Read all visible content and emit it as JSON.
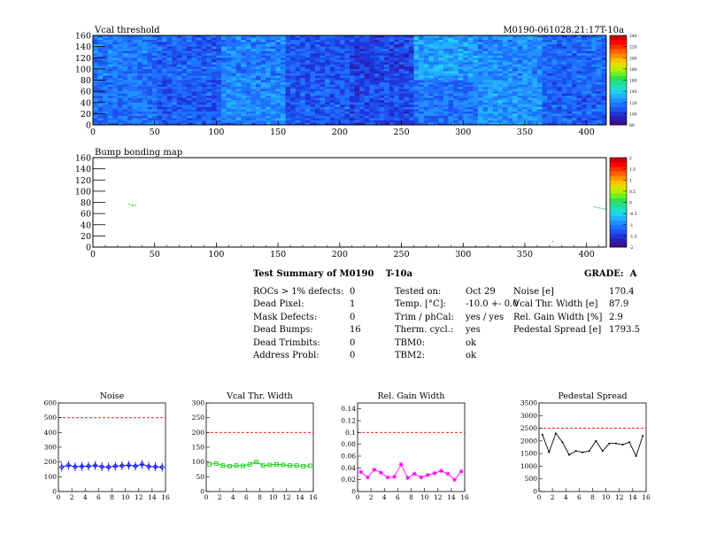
{
  "colors": {
    "map_low": "#2222cc",
    "map_mid": "#3aa0ff",
    "red_line": "#ff0000",
    "noise_series": "#0000ff",
    "vcal_series": "#00cc00",
    "gain_series": "#ff00ff",
    "pedestal_series": "#000000"
  },
  "header": {
    "vcal_title": "Vcal threshold",
    "module_id": "M0190-061028.21:17T-10a",
    "bump_title": "Bump bonding map"
  },
  "summary": {
    "title": "Test Summary of M0190",
    "subtitle": "T-10a",
    "grade_label": "GRADE:",
    "grade_value": "A",
    "col1": [
      {
        "label": "ROCs > 1% defects:",
        "value": "0"
      },
      {
        "label": "Dead Pixel:",
        "value": "1"
      },
      {
        "label": "Mask Defects:",
        "value": "0"
      },
      {
        "label": "Dead Bumps:",
        "value": "16"
      },
      {
        "label": "Dead Trimbits:",
        "value": "0"
      },
      {
        "label": "Address Probl:",
        "value": "0"
      }
    ],
    "col2": [
      {
        "label": "Tested on:",
        "value": "Oct 29"
      },
      {
        "label": "Temp. [°C]:",
        "value": "-10.0 +- 0.0"
      },
      {
        "label": "Trim / phCal:",
        "value": "yes / yes"
      },
      {
        "label": "Therm. cycl.:",
        "value": "yes"
      },
      {
        "label": "TBM0:",
        "value": "ok"
      },
      {
        "label": "TBM2:",
        "value": "ok"
      }
    ],
    "col3": [
      {
        "label": "Noise [e]",
        "value": "170.4"
      },
      {
        "label": "Vcal Thr. Width [e]",
        "value": "87.9"
      },
      {
        "label": "Rel. Gain Width [%]",
        "value": "2.9"
      },
      {
        "label": "Pedestal Spread [e]",
        "value": "1793.5"
      }
    ]
  },
  "chart_data": [
    {
      "type": "heatmap",
      "title": "Vcal threshold",
      "x_ticks": [
        "0",
        "50",
        "100",
        "150",
        "200",
        "250",
        "300",
        "350",
        "400"
      ],
      "y_ticks": [
        "0",
        "20",
        "40",
        "60",
        "80",
        "100",
        "120",
        "140",
        "160"
      ],
      "xlim": [
        0,
        416
      ],
      "ylim": [
        0,
        160
      ],
      "scale_ticks": [
        "240",
        "220",
        "200",
        "180",
        "160",
        "140",
        "120",
        "100",
        "80"
      ],
      "zlim": [
        80,
        240
      ],
      "roc_means_top": [
        118,
        112,
        120,
        108,
        104,
        128,
        122,
        114
      ],
      "roc_means_bottom": [
        116,
        110,
        122,
        110,
        106,
        116,
        126,
        112
      ]
    },
    {
      "type": "heatmap",
      "title": "Bump bonding map",
      "x_ticks": [
        "0",
        "50",
        "100",
        "150",
        "200",
        "250",
        "300",
        "350",
        "400"
      ],
      "y_ticks": [
        "0",
        "20",
        "40",
        "60",
        "80",
        "100",
        "120",
        "140",
        "160"
      ],
      "xlim": [
        0,
        416
      ],
      "ylim": [
        0,
        160
      ],
      "scale_ticks": [
        "2",
        "1.5",
        "1",
        "0.5",
        "0",
        "-0.5",
        "-1",
        "-1.5",
        "-2"
      ],
      "zlim": [
        -2,
        2
      ],
      "points": [
        [
          29,
          78
        ],
        [
          31,
          76
        ],
        [
          32,
          75
        ],
        [
          34,
          76
        ],
        [
          372,
          11
        ],
        [
          406,
          73
        ],
        [
          408,
          72
        ],
        [
          410,
          71
        ],
        [
          412,
          70
        ],
        [
          414,
          69
        ]
      ]
    },
    {
      "type": "line",
      "title": "Noise",
      "x_ticks": [
        "0",
        "2",
        "4",
        "6",
        "8",
        "10",
        "12",
        "14",
        "16"
      ],
      "y_ticks": [
        "0",
        "100",
        "200",
        "300",
        "400",
        "500",
        "600"
      ],
      "xlim": [
        0,
        16
      ],
      "ylim": [
        0,
        600
      ],
      "threshold": 500,
      "x": [
        0,
        1,
        2,
        3,
        4,
        5,
        6,
        7,
        8,
        9,
        10,
        11,
        12,
        13,
        14,
        15
      ],
      "values": [
        165,
        178,
        168,
        170,
        172,
        176,
        168,
        166,
        172,
        175,
        178,
        172,
        184,
        170,
        168,
        165
      ]
    },
    {
      "type": "line",
      "title": "Vcal Thr. Width",
      "x_ticks": [
        "0",
        "2",
        "4",
        "6",
        "8",
        "10",
        "12",
        "14",
        "16"
      ],
      "y_ticks": [
        "0",
        "50",
        "100",
        "150",
        "200",
        "250",
        "300"
      ],
      "xlim": [
        0,
        16
      ],
      "ylim": [
        0,
        300
      ],
      "threshold": 200,
      "x": [
        0,
        1,
        2,
        3,
        4,
        5,
        6,
        7,
        8,
        9,
        10,
        11,
        12,
        13,
        14,
        15
      ],
      "values": [
        92,
        95,
        88,
        86,
        88,
        87,
        92,
        100,
        88,
        90,
        92,
        90,
        88,
        88,
        86,
        87
      ]
    },
    {
      "type": "line",
      "title": "Rel. Gain Width",
      "x_ticks": [
        "0",
        "2",
        "4",
        "6",
        "8",
        "10",
        "12",
        "14",
        "16"
      ],
      "y_ticks": [
        "0",
        "0.02",
        "0.04",
        "0.06",
        "0.08",
        "0.1",
        "0.12",
        "0.14"
      ],
      "xlim": [
        0,
        16
      ],
      "ylim": [
        0,
        0.15
      ],
      "threshold": 0.1,
      "x": [
        0,
        1,
        2,
        3,
        4,
        5,
        6,
        7,
        8,
        9,
        10,
        11,
        12,
        13,
        14,
        15
      ],
      "values": [
        0.033,
        0.024,
        0.037,
        0.032,
        0.024,
        0.025,
        0.046,
        0.023,
        0.03,
        0.024,
        0.028,
        0.031,
        0.035,
        0.03,
        0.02,
        0.034
      ]
    },
    {
      "type": "line",
      "title": "Pedestal Spread",
      "x_ticks": [
        "0",
        "2",
        "4",
        "6",
        "8",
        "10",
        "12",
        "14",
        "16"
      ],
      "y_ticks": [
        "0",
        "500",
        "1000",
        "1500",
        "2000",
        "2500",
        "3000",
        "3500"
      ],
      "xlim": [
        0,
        16
      ],
      "ylim": [
        0,
        3500
      ],
      "threshold": 2500,
      "x": [
        0,
        1,
        2,
        3,
        4,
        5,
        6,
        7,
        8,
        9,
        10,
        11,
        12,
        13,
        14,
        15
      ],
      "values": [
        2250,
        1550,
        2300,
        1950,
        1450,
        1600,
        1550,
        1600,
        2000,
        1600,
        1900,
        1900,
        1850,
        1950,
        1400,
        2200
      ]
    }
  ]
}
